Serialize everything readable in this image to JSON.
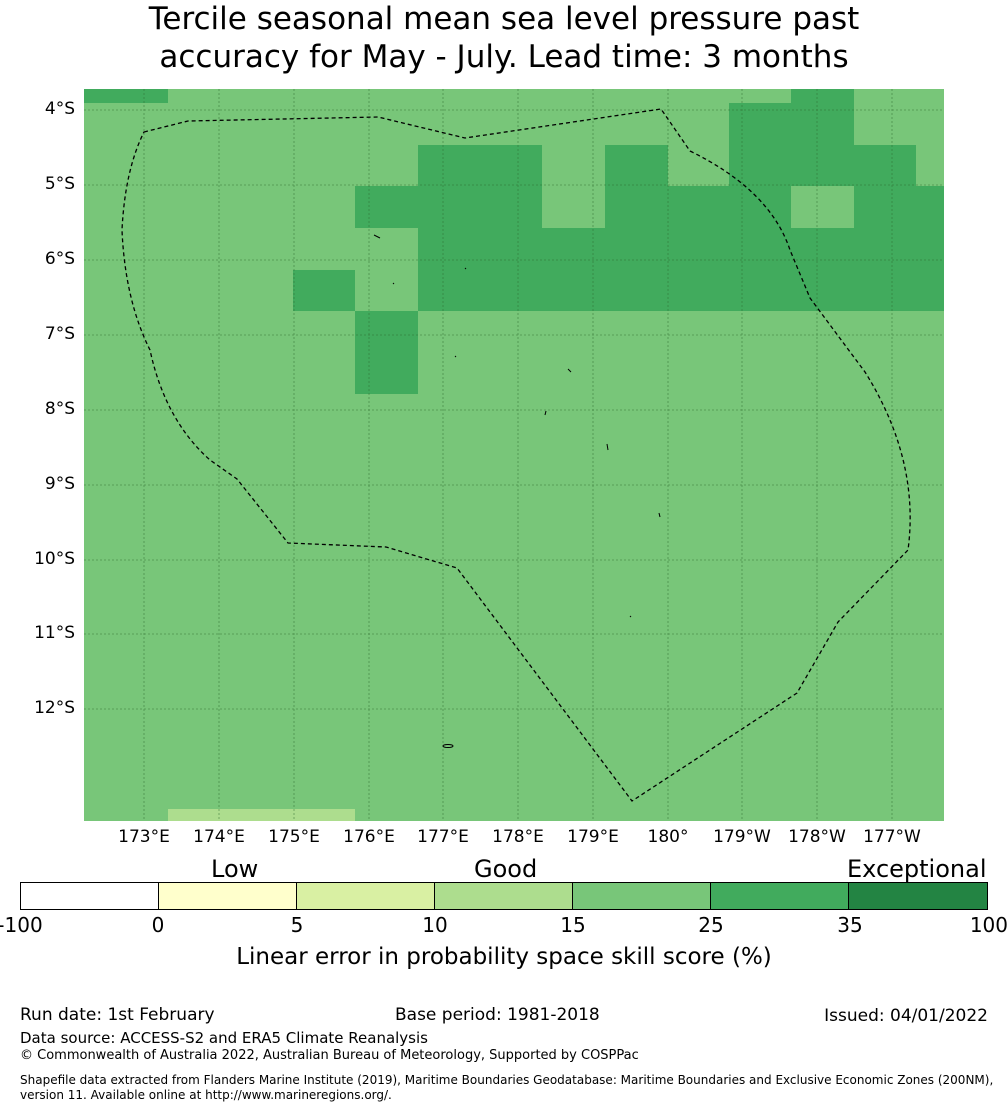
{
  "title_line1": "Tercile seasonal mean sea level pressure past",
  "title_line2": "accuracy for May - July. Lead time: 3 months",
  "lat_labels": [
    "4°S",
    "5°S",
    "6°S",
    "7°S",
    "8°S",
    "9°S",
    "10°S",
    "11°S",
    "12°S"
  ],
  "lon_labels": [
    "173°E",
    "174°E",
    "175°E",
    "176°E",
    "177°E",
    "178°E",
    "179°E",
    "180°",
    "179°W",
    "178°W",
    "177°W"
  ],
  "colors": {
    "low": "#ffffcc",
    "five_ten": "#d9f0a3",
    "ten_fifteen": "#addd8e",
    "fifteen_25": "#78c679",
    "twentyfive_35": "#41ab5d",
    "thirtyfive_100": "#238443",
    "neg": "#ffffff"
  },
  "colorbar": {
    "categories": [
      "Low",
      "Good",
      "Exceptional"
    ],
    "ticks": [
      "-100",
      "0",
      "5",
      "10",
      "15",
      "25",
      "35",
      "100"
    ],
    "label": "Linear error in probability space skill score (%)"
  },
  "footer": {
    "run_date": "Run date: 1st February",
    "base_period": "Base period: 1981-2018",
    "issued": "Issued: 04/01/2022",
    "data_source": "Data source: ACCESS-S2 and ERA5 Climate Reanalysis",
    "copyright": "© Commonwealth of Australia 2022, Australian Bureau of Meteorology, Supported by COSPPac",
    "shapefile": "Shapefile data extracted from Flanders Marine Institute (2019), Maritime Boundaries Geodatabase: Maritime Boundaries and Exclusive Economic Zones (200NM), version 11. Available online at http://www.marineregions.org/."
  }
}
